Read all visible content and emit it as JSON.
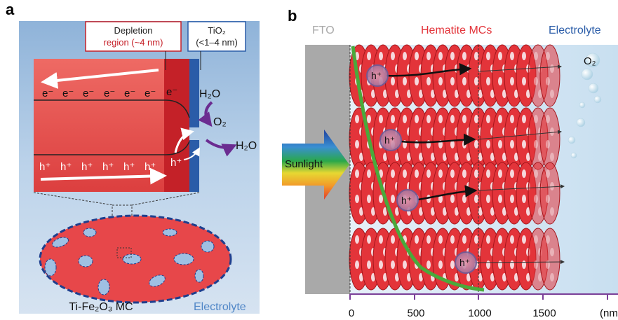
{
  "panel_a": {
    "label": "a",
    "depletion_box": {
      "line1": "Depletion",
      "line2": "region (~4 nm)"
    },
    "tio2_box": {
      "line1": "TiO₂",
      "line2": "(<1–4 nm)"
    },
    "electron": "e⁻",
    "hole": "h⁺",
    "h2o_top": "H₂O",
    "o2": "O₂",
    "h2o_bottom": "H₂O",
    "caption": "Ti-Fe₂O₃ MC",
    "electrolyte_label": "Electrolyte",
    "colors": {
      "panel_bg": "#c4d8ec",
      "film": "#e5524e",
      "film_front": "#c62129",
      "tio2": "#2a5ca8",
      "arrow_purple": "#6b2c91"
    }
  },
  "panel_b": {
    "label": "b",
    "fto_label": "FTO",
    "hematite_label": "Hematite MCs",
    "electrolyte_label": "Electrolyte",
    "sunlight_label": "Sunlight",
    "o2_label": "O₂",
    "hole": "h⁺",
    "axis_ticks": [
      "0",
      "500",
      "1000",
      "1500"
    ],
    "axis_unit": "(nm",
    "colors": {
      "fto": "#a9a9a9",
      "hematite": "#e3343a",
      "light_decay": "#4aa93b",
      "axis": "#7a3f98",
      "electrolyte_bg": "#d7e8f3"
    }
  }
}
